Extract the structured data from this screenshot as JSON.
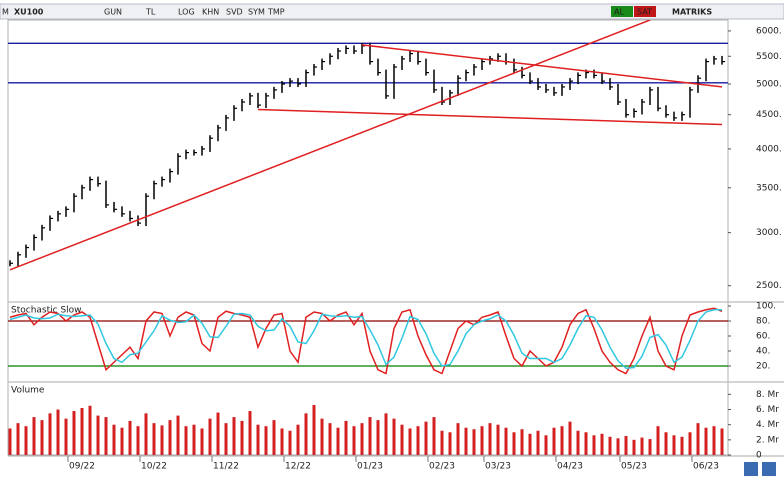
{
  "toolbar": [
    "M",
    "XU100",
    "GUN",
    "TL",
    "LOG",
    "KHN",
    "SVD",
    "SYM",
    "TMP",
    "AL",
    "SAT",
    "MATRIKS"
  ],
  "chart_data": [
    {
      "type": "ohlc",
      "log": true,
      "color": "#000000",
      "ylim": [
        2380,
        6230
      ],
      "yticks": [
        {
          "value": 6000,
          "label": "6000."
        },
        {
          "value": 5500,
          "label": "5500."
        },
        {
          "value": 5000,
          "label": "5000."
        },
        {
          "value": 4500,
          "label": "4500."
        },
        {
          "value": 4000,
          "label": "4000."
        },
        {
          "value": 3500,
          "label": "3500."
        },
        {
          "value": 3000,
          "label": "3000."
        },
        {
          "value": 2500,
          "label": "2500."
        }
      ],
      "values": [
        2700,
        2780,
        2850,
        2950,
        3050,
        3150,
        3200,
        3250,
        3400,
        3500,
        3600,
        3550,
        3300,
        3250,
        3200,
        3150,
        3100,
        3400,
        3550,
        3600,
        3700,
        3900,
        3950,
        3950,
        4000,
        4150,
        4300,
        4450,
        4600,
        4700,
        4800,
        4650,
        4800,
        4900,
        5000,
        5050,
        5000,
        5200,
        5300,
        5400,
        5500,
        5600,
        5650,
        5600,
        5700,
        5400,
        5200,
        4800,
        5300,
        5450,
        5550,
        5400,
        5200,
        4900,
        4700,
        4850,
        5100,
        5200,
        5300,
        5400,
        5450,
        5500,
        5400,
        5250,
        5150,
        5050,
        4950,
        4900,
        4850,
        4950,
        5050,
        5150,
        5200,
        5150,
        5050,
        4950,
        4700,
        4500,
        4550,
        4700,
        4900,
        4600,
        4500,
        4450,
        4500,
        4900,
        5100,
        5400,
        5450,
        5400
      ],
      "hlines": [
        {
          "value": 5750,
          "color": "#1a1aa0"
        },
        {
          "value": 5020,
          "color": "#1a1aa0"
        }
      ],
      "trendlines": [
        {
          "x": [
            0,
            80
          ],
          "y": [
            2640,
            6230
          ],
          "color": "#e02020"
        },
        {
          "x": [
            44,
            89
          ],
          "y": [
            5720,
            4950
          ],
          "color": "#e02020"
        },
        {
          "x": [
            31,
            89
          ],
          "y": [
            4580,
            4350
          ],
          "color": "#e02020"
        }
      ]
    },
    {
      "type": "line",
      "title": "Stochastic Slow",
      "ylim": [
        0,
        104
      ],
      "yticks": [
        {
          "value": 100,
          "label": "100."
        },
        {
          "value": 80,
          "label": "80."
        },
        {
          "value": 60,
          "label": "60."
        },
        {
          "value": 40,
          "label": "40."
        },
        {
          "value": 20,
          "label": "20."
        }
      ],
      "hlines": [
        {
          "value": 80,
          "color": "#8b0000"
        },
        {
          "value": 20,
          "color": "#008000"
        }
      ],
      "series": [
        {
          "color": "#e02020",
          "values": [
            85,
            88,
            90,
            75,
            85,
            92,
            90,
            80,
            88,
            92,
            85,
            50,
            15,
            25,
            35,
            45,
            30,
            80,
            92,
            90,
            60,
            85,
            92,
            88,
            50,
            40,
            85,
            93,
            90,
            88,
            85,
            45,
            70,
            88,
            90,
            40,
            25,
            85,
            92,
            90,
            80,
            88,
            92,
            75,
            90,
            40,
            15,
            10,
            70,
            92,
            95,
            60,
            35,
            15,
            10,
            40,
            70,
            80,
            75,
            85,
            88,
            92,
            60,
            30,
            20,
            40,
            30,
            20,
            25,
            45,
            75,
            90,
            95,
            70,
            40,
            25,
            15,
            10,
            30,
            60,
            85,
            40,
            20,
            15,
            60,
            88,
            92,
            95,
            97,
            93
          ]
        },
        {
          "color": "#30c8e0",
          "values": [
            82,
            85,
            88,
            84,
            83,
            84,
            89,
            87,
            86,
            87,
            88,
            76,
            50,
            30,
            25,
            35,
            37,
            52,
            67,
            87,
            81,
            78,
            79,
            88,
            77,
            59,
            58,
            73,
            89,
            90,
            88,
            73,
            67,
            68,
            83,
            73,
            52,
            50,
            67,
            89,
            87,
            86,
            87,
            85,
            86,
            68,
            48,
            22,
            32,
            57,
            86,
            82,
            63,
            37,
            20,
            22,
            40,
            63,
            75,
            80,
            83,
            88,
            80,
            61,
            37,
            30,
            30,
            30,
            25,
            30,
            48,
            70,
            87,
            85,
            68,
            45,
            27,
            17,
            18,
            33,
            58,
            62,
            48,
            25,
            32,
            54,
            80,
            92,
            95,
            95
          ]
        }
      ]
    },
    {
      "type": "bar",
      "title": "Volume",
      "color": "#d42020",
      "ylim": [
        0,
        9.5
      ],
      "yticks": [
        {
          "value": 8,
          "label": "8. Mr"
        },
        {
          "value": 6,
          "label": "6. Mr"
        },
        {
          "value": 4,
          "label": "4. Mr"
        },
        {
          "value": 2,
          "label": "2. Mr"
        },
        0
      ],
      "values": [
        3.5,
        4.2,
        3.8,
        5.0,
        4.6,
        5.5,
        6.0,
        4.8,
        5.8,
        6.2,
        6.5,
        5.2,
        5.0,
        4.0,
        3.6,
        4.5,
        3.8,
        5.5,
        4.2,
        3.9,
        4.6,
        5.2,
        3.8,
        4.0,
        3.5,
        4.8,
        5.6,
        4.2,
        5.0,
        4.5,
        5.8,
        4.0,
        3.8,
        4.6,
        3.5,
        3.2,
        4.0,
        5.5,
        6.6,
        4.8,
        4.2,
        3.6,
        4.5,
        3.8,
        4.2,
        5.0,
        4.6,
        5.5,
        4.8,
        4.0,
        3.5,
        3.8,
        4.4,
        5.0,
        3.2,
        3.0,
        4.2,
        3.6,
        3.4,
        3.8,
        4.2,
        4.0,
        3.6,
        3.0,
        3.4,
        2.8,
        3.2,
        2.6,
        3.6,
        3.8,
        4.4,
        3.2,
        3.0,
        2.6,
        2.8,
        2.4,
        2.2,
        2.5,
        2.0,
        2.3,
        2.1,
        3.8,
        3.0,
        2.6,
        2.4,
        3.0,
        4.2,
        3.6,
        3.8,
        3.5
      ],
      "categories": [
        null,
        null,
        null,
        null,
        null,
        null,
        null,
        null,
        null,
        "09/22",
        null,
        null,
        null,
        null,
        null,
        null,
        null,
        null,
        "10/22",
        null,
        null,
        null,
        null,
        null,
        null,
        null,
        null,
        "11/22",
        null,
        null,
        null,
        null,
        null,
        null,
        null,
        null,
        "12/22",
        null,
        null,
        null,
        null,
        null,
        null,
        null,
        null,
        "01/23",
        null,
        null,
        null,
        null,
        null,
        null,
        null,
        null,
        "02/23",
        null,
        null,
        null,
        null,
        null,
        null,
        "03/23",
        null,
        null,
        null,
        null,
        null,
        null,
        null,
        null,
        "04/23",
        null,
        null,
        null,
        null,
        null,
        null,
        null,
        "05/23",
        null,
        null,
        null,
        null,
        null,
        null,
        null,
        null,
        "06/23",
        null,
        null
      ]
    }
  ]
}
